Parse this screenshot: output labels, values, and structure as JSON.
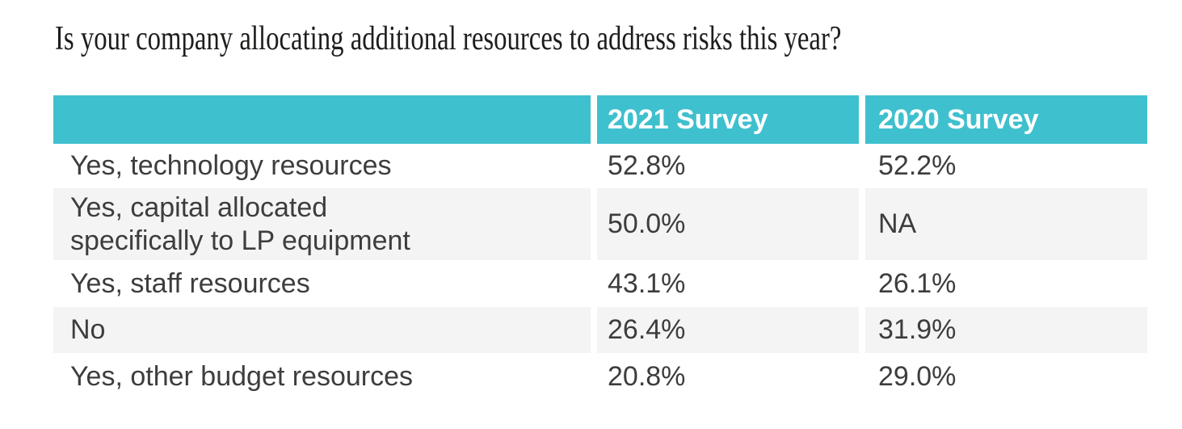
{
  "title": "Is your company allocating additional resources to address risks this year?",
  "colors": {
    "header_bg": "#3FC0CE",
    "header_text": "#FFFFFF",
    "row_alt_bg": "#F4F4F4",
    "body_text": "#3D3D3D",
    "title_text": "#1D1D1B"
  },
  "table": {
    "headers": [
      "",
      "2021 Survey",
      "2020 Survey"
    ],
    "rows": [
      {
        "label": "Yes, technology resources",
        "survey_2021": "52.8%",
        "survey_2020": "52.2%"
      },
      {
        "label": "Yes, capital allocated\nspecifically to LP equipment",
        "survey_2021": "50.0%",
        "survey_2020": "NA"
      },
      {
        "label": "Yes, staff resources",
        "survey_2021": "43.1%",
        "survey_2020": "26.1%"
      },
      {
        "label": "No",
        "survey_2021": "26.4%",
        "survey_2020": "31.9%"
      },
      {
        "label": "Yes, other budget resources",
        "survey_2021": "20.8%",
        "survey_2020": "29.0%"
      }
    ]
  },
  "chart_data": {
    "type": "table",
    "title": "Is your company allocating additional resources to address risks this year?",
    "categories": [
      "Yes, technology resources",
      "Yes, capital allocated specifically to LP equipment",
      "Yes, staff resources",
      "No",
      "Yes, other budget resources"
    ],
    "series": [
      {
        "name": "2021 Survey",
        "values": [
          52.8,
          50.0,
          43.1,
          26.4,
          20.8
        ]
      },
      {
        "name": "2020 Survey",
        "values": [
          52.2,
          null,
          26.1,
          31.9,
          29.0
        ]
      }
    ],
    "unit": "%",
    "na_display": "NA",
    "legend_position": "header-row",
    "grid": false
  }
}
